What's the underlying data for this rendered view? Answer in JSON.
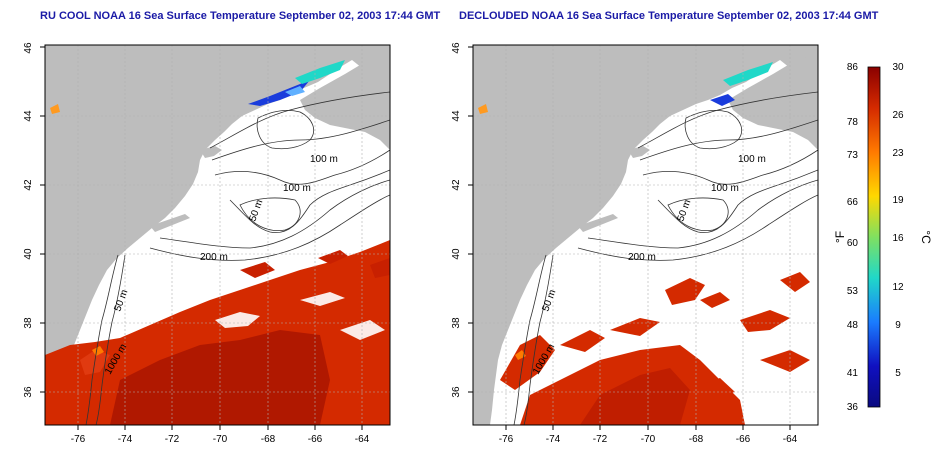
{
  "titles": {
    "left": "RU COOL NOAA 16 Sea Surface Temperature September 02, 2003 17:44 GMT",
    "right": "DECLOUDED NOAA 16 Sea Surface Temperature September 02, 2003 17:44 GMT"
  },
  "map": {
    "lon_ticks": [
      "-76",
      "-74",
      "-72",
      "-70",
      "-68",
      "-66",
      "-64"
    ],
    "lat_ticks": [
      "36",
      "38",
      "40",
      "42",
      "44",
      "46"
    ],
    "contour_labels": [
      "100 m",
      "100 m",
      "50 m",
      "200 m",
      "50 m",
      "1000 m"
    ],
    "colors": {
      "land": "#bdbdbd",
      "ocean": "#ffffff",
      "grid": "#b0b0b0",
      "contour": "#333333"
    }
  },
  "colorbar": {
    "f_ticks": [
      "86",
      "78",
      "73",
      "66",
      "60",
      "53",
      "48",
      "41",
      "36"
    ],
    "c_ticks": [
      "30",
      "26",
      "23",
      "19",
      "16",
      "12",
      "9",
      "5"
    ],
    "f_unit": "°F",
    "c_unit": "°C",
    "colors": [
      "#8a0000",
      "#d42a00",
      "#ff7a00",
      "#ffd800",
      "#80e060",
      "#20d8c8",
      "#1a7cff",
      "#1010c0",
      "#0a0a80"
    ]
  }
}
